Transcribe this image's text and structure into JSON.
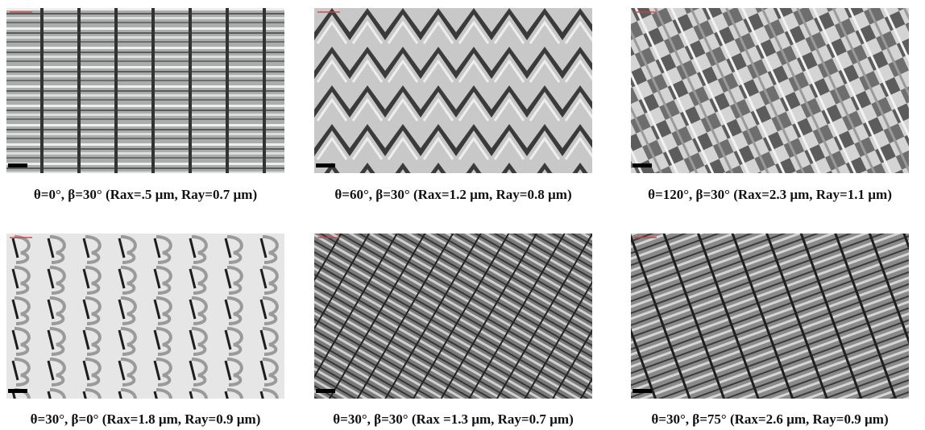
{
  "panels": [
    {
      "caption": "θ=0°, β=30° (Rax=.5 µm, Ray=0.7 µm)"
    },
    {
      "caption": "θ=60°, β=30° (Rax=1.2 µm, Ray=0.8 µm)"
    },
    {
      "caption": "θ=120°, β=30° (Rax=2.3 µm, Ray=1.1 µm)"
    },
    {
      "caption": "θ=30°, β=0° (Rax=1.8 µm, Ray=0.9 µm)"
    },
    {
      "caption": "θ=30°, β=30° (Rax =1.3 µm, Ray=0.7 µm)"
    },
    {
      "caption": "θ=30°, β=75° (Rax=2.6 µm, Ray=0.9 µm)"
    }
  ]
}
